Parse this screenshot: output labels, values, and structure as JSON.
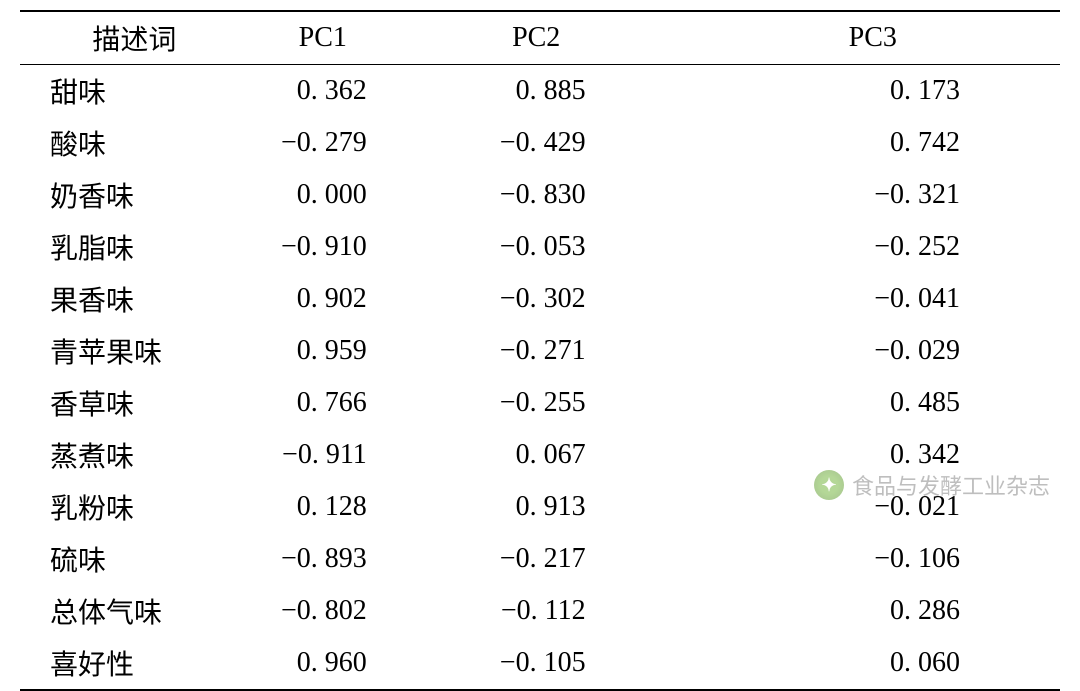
{
  "table": {
    "type": "table",
    "columns": [
      "描述词",
      "PC1",
      "PC2",
      "PC3"
    ],
    "rows": [
      {
        "label": "甜味",
        "pc1": "0. 362",
        "pc2": "0. 885",
        "pc3": "0. 173"
      },
      {
        "label": "酸味",
        "pc1": "−0. 279",
        "pc2": "−0. 429",
        "pc3": "0. 742"
      },
      {
        "label": "奶香味",
        "pc1": "0. 000",
        "pc2": "−0. 830",
        "pc3": "−0. 321"
      },
      {
        "label": "乳脂味",
        "pc1": "−0. 910",
        "pc2": "−0. 053",
        "pc3": "−0. 252"
      },
      {
        "label": "果香味",
        "pc1": "0. 902",
        "pc2": "−0. 302",
        "pc3": "−0. 041"
      },
      {
        "label": "青苹果味",
        "pc1": "0. 959",
        "pc2": "−0. 271",
        "pc3": "−0. 029"
      },
      {
        "label": "香草味",
        "pc1": "0. 766",
        "pc2": "−0. 255",
        "pc3": "0. 485"
      },
      {
        "label": "蒸煮味",
        "pc1": "−0. 911",
        "pc2": "0. 067",
        "pc3": "0. 342"
      },
      {
        "label": "乳粉味",
        "pc1": "0. 128",
        "pc2": "0. 913",
        "pc3": "−0. 021"
      },
      {
        "label": "硫味",
        "pc1": "−0. 893",
        "pc2": "−0. 217",
        "pc3": "−0. 106"
      },
      {
        "label": "总体气味",
        "pc1": "−0. 802",
        "pc2": "−0. 112",
        "pc3": "0. 286"
      },
      {
        "label": "喜好性",
        "pc1": "0. 960",
        "pc2": "−0. 105",
        "pc3": "0. 060"
      }
    ],
    "background_color": "#ffffff",
    "border_color": "#000000",
    "header_fontsize": 28,
    "cell_fontsize": 28,
    "text_color": "#000000"
  },
  "watermark": {
    "text": "食品与发酵工业杂志",
    "icon_glyph": "✦",
    "color": "#8a8a8a",
    "icon_bg": "#78b843"
  }
}
